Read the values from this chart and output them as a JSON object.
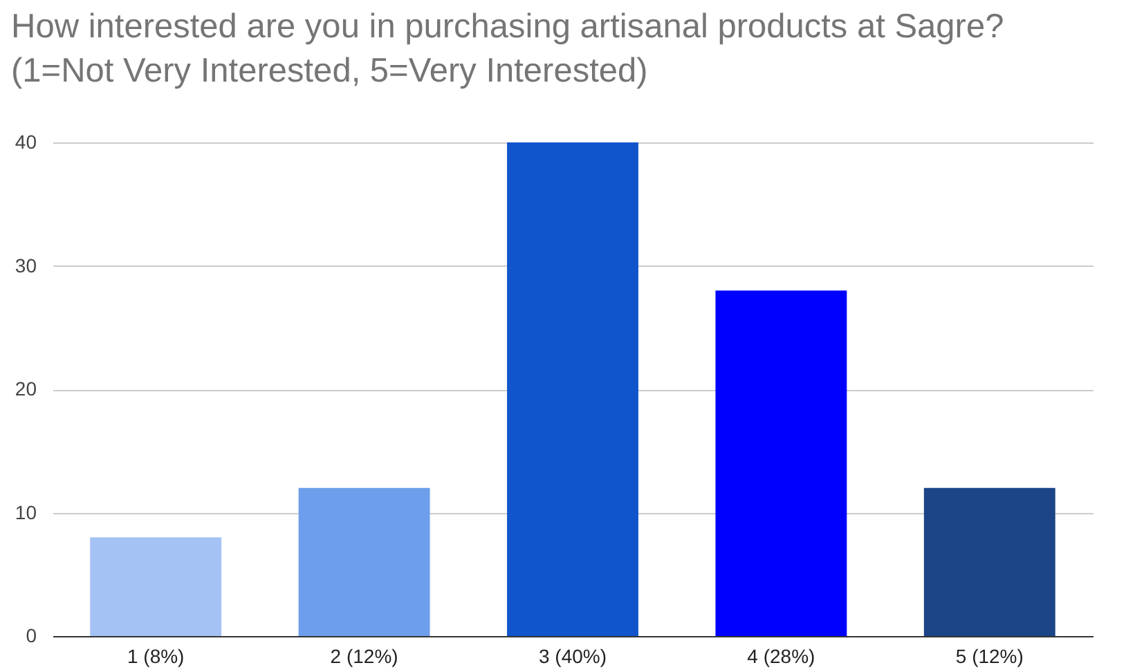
{
  "chart_data": {
    "type": "bar",
    "title": "How interested are you in purchasing artisanal products at Sagre? (1=Not Very Interested, 5=Very Interested)",
    "categories": [
      "1 (8%)",
      "2 (12%)",
      "3 (40%)",
      "4 (28%)",
      "5 (12%)"
    ],
    "values": [
      8,
      12,
      40,
      28,
      12
    ],
    "colors": [
      "#a4c2f4",
      "#6d9eeb",
      "#1155cc",
      "#0000ff",
      "#1c4587"
    ],
    "ylim": [
      0,
      40
    ],
    "yticks": [
      0,
      10,
      20,
      30,
      40
    ],
    "grid": "y",
    "legend": false
  }
}
